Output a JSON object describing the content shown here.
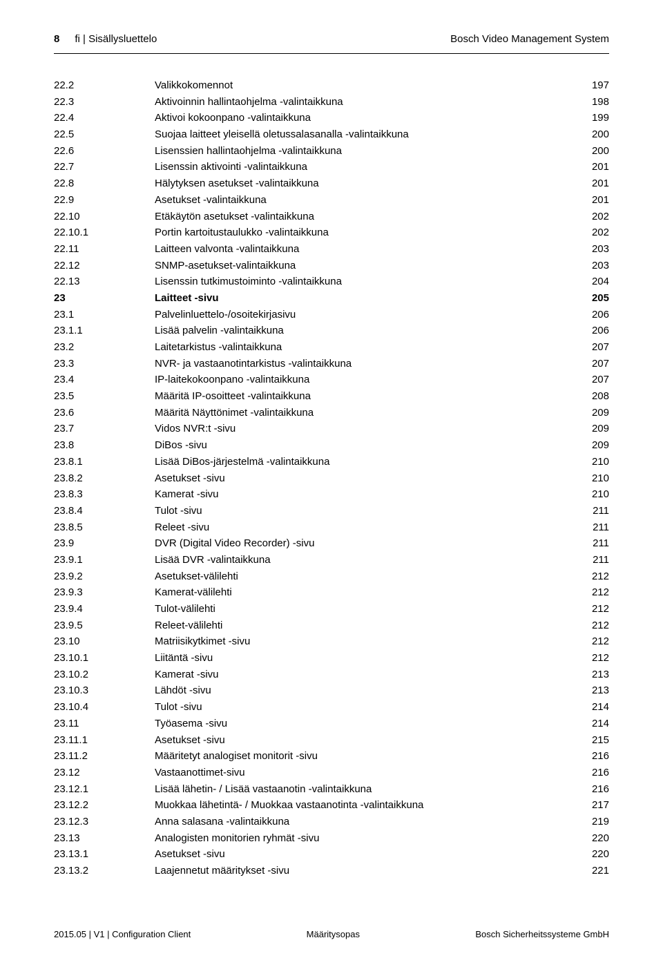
{
  "header": {
    "page_number": "8",
    "left": "fi | Sisällysluettelo",
    "right": "Bosch Video Management System"
  },
  "toc": [
    {
      "num": "22.2",
      "title": "Valikkokomennot",
      "page": "197",
      "bold": false
    },
    {
      "num": "22.3",
      "title": "Aktivoinnin hallintaohjelma -valintaikkuna",
      "page": "198",
      "bold": false
    },
    {
      "num": "22.4",
      "title": "Aktivoi kokoonpano -valintaikkuna",
      "page": "199",
      "bold": false
    },
    {
      "num": "22.5",
      "title": "Suojaa laitteet yleisellä oletussalasanalla -valintaikkuna",
      "page": "200",
      "bold": false
    },
    {
      "num": "22.6",
      "title": "Lisenssien hallintaohjelma -valintaikkuna",
      "page": "200",
      "bold": false
    },
    {
      "num": "22.7",
      "title": "Lisenssin aktivointi -valintaikkuna",
      "page": "201",
      "bold": false
    },
    {
      "num": "22.8",
      "title": "Hälytyksen asetukset -valintaikkuna",
      "page": "201",
      "bold": false
    },
    {
      "num": "22.9",
      "title": "Asetukset -valintaikkuna",
      "page": "201",
      "bold": false
    },
    {
      "num": "22.10",
      "title": "Etäkäytön asetukset -valintaikkuna",
      "page": "202",
      "bold": false
    },
    {
      "num": "22.10.1",
      "title": "Portin kartoitustaulukko -valintaikkuna",
      "page": "202",
      "bold": false
    },
    {
      "num": "22.11",
      "title": "Laitteen valvonta -valintaikkuna",
      "page": "203",
      "bold": false
    },
    {
      "num": "22.12",
      "title": "SNMP-asetukset-valintaikkuna",
      "page": "203",
      "bold": false
    },
    {
      "num": "22.13",
      "title": "Lisenssin tutkimustoiminto -valintaikkuna",
      "page": "204",
      "bold": false
    },
    {
      "num": "23",
      "title": "Laitteet -sivu",
      "page": "205",
      "bold": true
    },
    {
      "num": "23.1",
      "title": "Palvelinluettelo-/osoitekirjasivu",
      "page": "206",
      "bold": false
    },
    {
      "num": "23.1.1",
      "title": "Lisää palvelin -valintaikkuna",
      "page": "206",
      "bold": false
    },
    {
      "num": "23.2",
      "title": "Laitetarkistus -valintaikkuna",
      "page": "207",
      "bold": false
    },
    {
      "num": "23.3",
      "title": "NVR- ja vastaanotintarkistus -valintaikkuna",
      "page": "207",
      "bold": false
    },
    {
      "num": "23.4",
      "title": "IP-laitekokoonpano -valintaikkuna",
      "page": "207",
      "bold": false
    },
    {
      "num": "23.5",
      "title": "Määritä IP-osoitteet -valintaikkuna",
      "page": "208",
      "bold": false
    },
    {
      "num": "23.6",
      "title": "Määritä Näyttönimet -valintaikkuna",
      "page": "209",
      "bold": false
    },
    {
      "num": "23.7",
      "title": "Vidos NVR:t -sivu",
      "page": "209",
      "bold": false
    },
    {
      "num": "23.8",
      "title": "DiBos -sivu",
      "page": "209",
      "bold": false
    },
    {
      "num": "23.8.1",
      "title": "Lisää DiBos-järjestelmä -valintaikkuna",
      "page": "210",
      "bold": false
    },
    {
      "num": "23.8.2",
      "title": "Asetukset -sivu",
      "page": "210",
      "bold": false
    },
    {
      "num": "23.8.3",
      "title": "Kamerat -sivu",
      "page": "210",
      "bold": false
    },
    {
      "num": "23.8.4",
      "title": "Tulot -sivu",
      "page": "211",
      "bold": false
    },
    {
      "num": "23.8.5",
      "title": "Releet -sivu",
      "page": "211",
      "bold": false
    },
    {
      "num": "23.9",
      "title": "DVR (Digital Video Recorder) -sivu",
      "page": "211",
      "bold": false
    },
    {
      "num": "23.9.1",
      "title": "Lisää DVR -valintaikkuna",
      "page": "211",
      "bold": false
    },
    {
      "num": "23.9.2",
      "title": "Asetukset-välilehti",
      "page": "212",
      "bold": false
    },
    {
      "num": "23.9.3",
      "title": "Kamerat-välilehti",
      "page": "212",
      "bold": false
    },
    {
      "num": "23.9.4",
      "title": "Tulot-välilehti",
      "page": "212",
      "bold": false
    },
    {
      "num": "23.9.5",
      "title": "Releet-välilehti",
      "page": "212",
      "bold": false
    },
    {
      "num": "23.10",
      "title": "Matriisikytkimet -sivu",
      "page": "212",
      "bold": false
    },
    {
      "num": "23.10.1",
      "title": "Liitäntä -sivu",
      "page": "212",
      "bold": false
    },
    {
      "num": "23.10.2",
      "title": "Kamerat -sivu",
      "page": "213",
      "bold": false
    },
    {
      "num": "23.10.3",
      "title": "Lähdöt -sivu",
      "page": "213",
      "bold": false
    },
    {
      "num": "23.10.4",
      "title": "Tulot -sivu",
      "page": "214",
      "bold": false
    },
    {
      "num": "23.11",
      "title": "Työasema -sivu",
      "page": "214",
      "bold": false
    },
    {
      "num": "23.11.1",
      "title": "Asetukset -sivu",
      "page": "215",
      "bold": false
    },
    {
      "num": "23.11.2",
      "title": "Määritetyt analogiset monitorit -sivu",
      "page": "216",
      "bold": false
    },
    {
      "num": "23.12",
      "title": "Vastaanottimet-sivu",
      "page": "216",
      "bold": false
    },
    {
      "num": "23.12.1",
      "title": "Lisää lähetin- / Lisää vastaanotin -valintaikkuna",
      "page": "216",
      "bold": false
    },
    {
      "num": "23.12.2",
      "title": "Muokkaa lähetintä- / Muokkaa vastaanotinta -valintaikkuna",
      "page": "217",
      "bold": false
    },
    {
      "num": "23.12.3",
      "title": "Anna salasana -valintaikkuna",
      "page": "219",
      "bold": false
    },
    {
      "num": "23.13",
      "title": "Analogisten monitorien ryhmät -sivu",
      "page": "220",
      "bold": false
    },
    {
      "num": "23.13.1",
      "title": "Asetukset -sivu",
      "page": "220",
      "bold": false
    },
    {
      "num": "23.13.2",
      "title": "Laajennetut määritykset -sivu",
      "page": "221",
      "bold": false
    }
  ],
  "footer": {
    "left": "2015.05 | V1 | Configuration Client",
    "center": "Määritysopas",
    "right": "Bosch Sicherheitssysteme GmbH"
  }
}
